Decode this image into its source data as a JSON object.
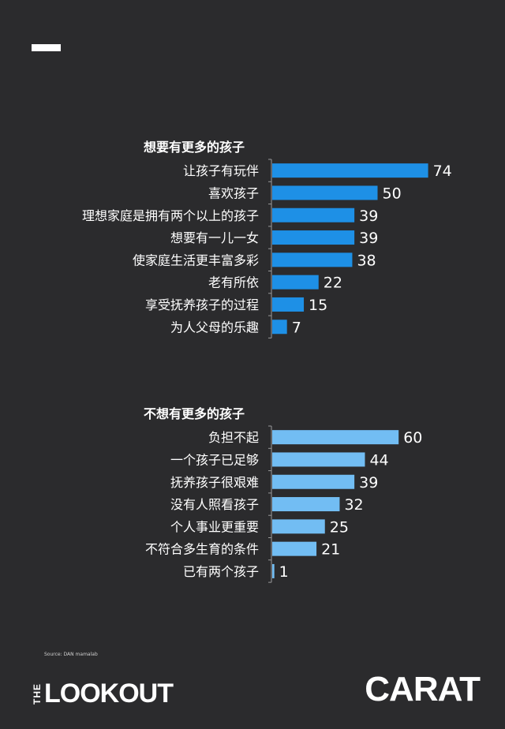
{
  "chart_data": [
    {
      "type": "bar",
      "orientation": "horizontal",
      "title": "想要有更多的孩子",
      "categories": [
        "让孩子有玩伴",
        "喜欢孩子",
        "理想家庭是拥有两个以上的孩子",
        "想要有一儿一女",
        "使家庭生活更丰富多彩",
        "老有所依",
        "享受抚养孩子的过程",
        "为人父母的乐趣"
      ],
      "values": [
        74,
        50,
        39,
        39,
        38,
        22,
        15,
        7
      ],
      "color": "#1e90e6",
      "xlim": [
        0,
        80
      ]
    },
    {
      "type": "bar",
      "orientation": "horizontal",
      "title": "不想有更多的孩子",
      "categories": [
        "负担不起",
        "一个孩子已足够",
        "抚养孩子很艰难",
        "没有人照看孩子",
        "个人事业更重要",
        "不符合多生育的条件",
        "已有两个孩子"
      ],
      "values": [
        60,
        44,
        39,
        32,
        25,
        21,
        1
      ],
      "color": "#72bdf3",
      "xlim": [
        0,
        80
      ]
    }
  ],
  "footer": {
    "source": "Source: DAN mamalab",
    "logo_left_small": "THE",
    "logo_left_main": "LOOKOUT",
    "logo_right": "CARAT"
  }
}
